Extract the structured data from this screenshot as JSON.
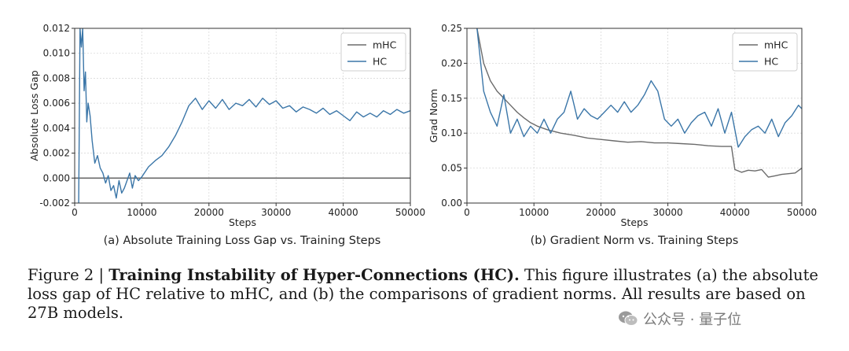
{
  "chart_data": [
    {
      "type": "line",
      "subcaption": "(a) Absolute Training Loss Gap vs. Training Steps",
      "xlabel": "Steps",
      "ylabel": "Absolute Loss Gap",
      "xlim": [
        0,
        50000
      ],
      "ylim": [
        -0.002,
        0.012
      ],
      "xticks": [
        "0",
        "10000",
        "20000",
        "30000",
        "40000",
        "50000"
      ],
      "yticks": [
        "-0.002",
        "0.000",
        "0.002",
        "0.004",
        "0.006",
        "0.008",
        "0.010",
        "0.012"
      ],
      "grid": true,
      "legend": "top-right",
      "series": [
        {
          "name": "mHC",
          "color": "#6b6b6b",
          "x": [
            0,
            50000
          ],
          "y": [
            0.0,
            0.0
          ]
        },
        {
          "name": "HC",
          "color": "#3b76a8",
          "x": [
            600,
            800,
            1000,
            1200,
            1400,
            1600,
            1800,
            2000,
            2300,
            2600,
            3000,
            3400,
            3800,
            4200,
            4600,
            5000,
            5400,
            5800,
            6200,
            6600,
            7000,
            7400,
            7800,
            8200,
            8600,
            9000,
            9500,
            10000,
            11000,
            12000,
            13000,
            14000,
            15000,
            16000,
            17000,
            18000,
            19000,
            20000,
            21000,
            22000,
            23000,
            24000,
            25000,
            26000,
            27000,
            28000,
            29000,
            30000,
            31000,
            32000,
            33000,
            34000,
            35000,
            36000,
            37000,
            38000,
            39000,
            40000,
            41000,
            42000,
            43000,
            44000,
            45000,
            46000,
            47000,
            48000,
            49000,
            50000
          ],
          "y": [
            -0.002,
            0.012,
            0.0105,
            0.012,
            0.007,
            0.0085,
            0.0045,
            0.006,
            0.005,
            0.003,
            0.0012,
            0.0018,
            0.0008,
            0.0004,
            -0.0004,
            0.0002,
            -0.001,
            -0.0006,
            -0.0016,
            -0.0002,
            -0.0012,
            -0.0008,
            -0.0002,
            0.0004,
            -0.0008,
            0.0002,
            -0.0002,
            0.0001,
            0.0009,
            0.0014,
            0.0018,
            0.0025,
            0.0034,
            0.0045,
            0.0058,
            0.0064,
            0.0055,
            0.0062,
            0.0056,
            0.0063,
            0.0055,
            0.006,
            0.0058,
            0.0063,
            0.0057,
            0.0064,
            0.0059,
            0.0062,
            0.0056,
            0.0058,
            0.0053,
            0.0057,
            0.0055,
            0.0052,
            0.0056,
            0.0051,
            0.0054,
            0.005,
            0.0046,
            0.0053,
            0.0049,
            0.0052,
            0.0049,
            0.0054,
            0.0051,
            0.0055,
            0.0052,
            0.0054
          ]
        }
      ]
    },
    {
      "type": "line",
      "subcaption": "(b) Gradient Norm vs. Training Steps",
      "xlabel": "Steps",
      "ylabel": "Grad Norm",
      "xlim": [
        0,
        50000
      ],
      "ylim": [
        0.0,
        0.25
      ],
      "xticks": [
        "0",
        "10000",
        "20000",
        "30000",
        "40000",
        "50000"
      ],
      "yticks": [
        "0.00",
        "0.05",
        "0.10",
        "0.15",
        "0.20",
        "0.25"
      ],
      "grid": true,
      "legend": "top-right",
      "series": [
        {
          "name": "mHC",
          "color": "#6b6b6b",
          "x": [
            1500,
            2500,
            3500,
            4500,
            5500,
            6500,
            7500,
            8500,
            9500,
            10500,
            12000,
            14000,
            16000,
            18000,
            20000,
            22000,
            24000,
            26000,
            28000,
            30000,
            32000,
            34000,
            36000,
            38000,
            39500,
            40000,
            41000,
            42000,
            43000,
            44000,
            45000,
            46000,
            47000,
            48000,
            49000,
            50000
          ],
          "y": [
            0.25,
            0.2,
            0.175,
            0.16,
            0.15,
            0.14,
            0.13,
            0.122,
            0.115,
            0.11,
            0.105,
            0.1,
            0.097,
            0.093,
            0.091,
            0.089,
            0.087,
            0.088,
            0.086,
            0.086,
            0.085,
            0.084,
            0.082,
            0.081,
            0.081,
            0.048,
            0.044,
            0.047,
            0.046,
            0.048,
            0.037,
            0.039,
            0.041,
            0.042,
            0.043,
            0.05
          ]
        },
        {
          "name": "HC",
          "color": "#3b76a8",
          "x": [
            1500,
            2500,
            3500,
            4500,
            5500,
            6500,
            7500,
            8500,
            9500,
            10500,
            11500,
            12500,
            13500,
            14500,
            15500,
            16500,
            17500,
            18500,
            19500,
            20500,
            21500,
            22500,
            23500,
            24500,
            25500,
            26500,
            27500,
            28500,
            29500,
            30500,
            31500,
            32500,
            33500,
            34500,
            35500,
            36500,
            37500,
            38500,
            39500,
            40500,
            41500,
            42500,
            43500,
            44500,
            45500,
            46500,
            47500,
            48500,
            49500,
            50000
          ],
          "y": [
            0.25,
            0.16,
            0.13,
            0.11,
            0.155,
            0.1,
            0.12,
            0.095,
            0.11,
            0.1,
            0.12,
            0.1,
            0.12,
            0.13,
            0.16,
            0.12,
            0.135,
            0.125,
            0.12,
            0.13,
            0.14,
            0.13,
            0.145,
            0.13,
            0.14,
            0.155,
            0.175,
            0.16,
            0.12,
            0.11,
            0.12,
            0.1,
            0.115,
            0.125,
            0.13,
            0.11,
            0.135,
            0.1,
            0.13,
            0.08,
            0.095,
            0.105,
            0.11,
            0.1,
            0.12,
            0.095,
            0.115,
            0.125,
            0.14,
            0.135
          ]
        }
      ]
    }
  ],
  "caption": {
    "prefix": "Figure 2 | ",
    "title": "Training Instability of Hyper-Connections (HC).",
    "body": " This figure illustrates (a) the absolute loss gap of HC relative to mHC, and (b) the comparisons of gradient norms. All results are based on 27B models."
  },
  "watermark": {
    "text": "公众号 · 量子位",
    "icon": "wechat-icon"
  }
}
